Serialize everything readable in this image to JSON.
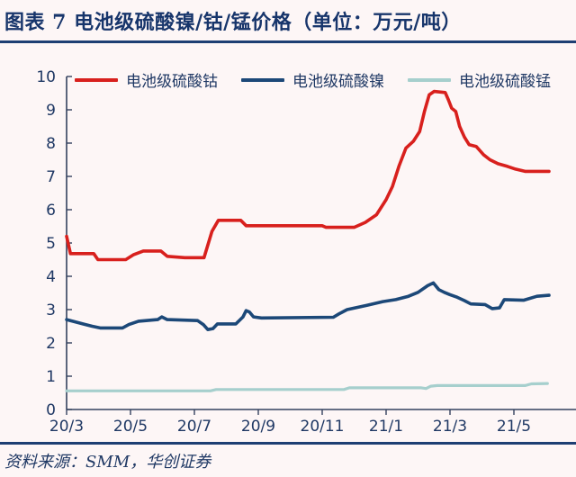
{
  "header": {
    "title": "图表 7 电池级硫酸镍/钴/锰价格（单位：万元/吨）"
  },
  "footer": {
    "source": "资料来源：SMM，华创证券"
  },
  "colors": {
    "cobalt": "#d8201d",
    "nickel": "#1c4878",
    "manganese": "#a6cfcd",
    "text": "#1f3864",
    "axis": "#33415e",
    "rule": "#1e3f73",
    "background": "#fdf6f6"
  },
  "chart_data": {
    "type": "line",
    "title": "电池级硫酸镍/钴/锰价格",
    "unit": "万元/吨",
    "legend_position": "top",
    "grid": false,
    "ylim": [
      0,
      10
    ],
    "y_ticks": [
      0,
      1,
      2,
      3,
      4,
      5,
      6,
      7,
      8,
      9,
      10
    ],
    "x_tick_labels": [
      "20/3",
      "20/5",
      "20/7",
      "20/9",
      "20/11",
      "21/1",
      "21/3",
      "21/5"
    ],
    "x_tick_months": [
      0,
      2,
      4,
      6,
      8,
      10,
      12,
      14
    ],
    "x_axis_end_month": 16,
    "x_note": "points are [months after 2020-03, price in 万元/吨]",
    "series": [
      {
        "name": "电池级硫酸钴",
        "color_key": "cobalt",
        "width": 3.6,
        "points": [
          [
            0,
            5.2
          ],
          [
            0.12,
            4.68
          ],
          [
            0.85,
            4.68
          ],
          [
            0.98,
            4.5
          ],
          [
            1.85,
            4.5
          ],
          [
            2.1,
            4.65
          ],
          [
            2.4,
            4.76
          ],
          [
            2.95,
            4.76
          ],
          [
            3.15,
            4.6
          ],
          [
            3.7,
            4.56
          ],
          [
            4.3,
            4.56
          ],
          [
            4.55,
            5.35
          ],
          [
            4.75,
            5.68
          ],
          [
            5.45,
            5.68
          ],
          [
            5.62,
            5.52
          ],
          [
            8.0,
            5.52
          ],
          [
            8.12,
            5.47
          ],
          [
            9.0,
            5.47
          ],
          [
            9.35,
            5.62
          ],
          [
            9.7,
            5.85
          ],
          [
            10.0,
            6.3
          ],
          [
            10.2,
            6.7
          ],
          [
            10.4,
            7.3
          ],
          [
            10.62,
            7.85
          ],
          [
            10.85,
            8.05
          ],
          [
            11.05,
            8.35
          ],
          [
            11.2,
            8.95
          ],
          [
            11.35,
            9.45
          ],
          [
            11.5,
            9.55
          ],
          [
            11.85,
            9.52
          ],
          [
            11.95,
            9.3
          ],
          [
            12.05,
            9.05
          ],
          [
            12.18,
            8.95
          ],
          [
            12.3,
            8.5
          ],
          [
            12.45,
            8.18
          ],
          [
            12.6,
            7.95
          ],
          [
            12.82,
            7.9
          ],
          [
            13.05,
            7.65
          ],
          [
            13.25,
            7.5
          ],
          [
            13.5,
            7.38
          ],
          [
            13.8,
            7.3
          ],
          [
            14.05,
            7.22
          ],
          [
            14.35,
            7.15
          ],
          [
            15.1,
            7.15
          ]
        ]
      },
      {
        "name": "电池级硫酸镍",
        "color_key": "nickel",
        "width": 3.6,
        "points": [
          [
            0,
            2.7
          ],
          [
            0.55,
            2.56
          ],
          [
            0.8,
            2.5
          ],
          [
            1.05,
            2.45
          ],
          [
            1.75,
            2.45
          ],
          [
            1.95,
            2.55
          ],
          [
            2.25,
            2.65
          ],
          [
            2.85,
            2.7
          ],
          [
            2.98,
            2.78
          ],
          [
            3.15,
            2.7
          ],
          [
            4.1,
            2.67
          ],
          [
            4.28,
            2.55
          ],
          [
            4.42,
            2.4
          ],
          [
            4.58,
            2.43
          ],
          [
            4.72,
            2.57
          ],
          [
            5.3,
            2.57
          ],
          [
            5.52,
            2.78
          ],
          [
            5.62,
            2.97
          ],
          [
            5.72,
            2.93
          ],
          [
            5.85,
            2.78
          ],
          [
            6.1,
            2.75
          ],
          [
            8.35,
            2.77
          ],
          [
            8.52,
            2.87
          ],
          [
            8.78,
            3.0
          ],
          [
            9.4,
            3.13
          ],
          [
            9.9,
            3.24
          ],
          [
            10.3,
            3.3
          ],
          [
            10.7,
            3.4
          ],
          [
            11.0,
            3.52
          ],
          [
            11.3,
            3.72
          ],
          [
            11.48,
            3.8
          ],
          [
            11.65,
            3.6
          ],
          [
            11.82,
            3.52
          ],
          [
            12.0,
            3.45
          ],
          [
            12.2,
            3.38
          ],
          [
            12.45,
            3.27
          ],
          [
            12.65,
            3.17
          ],
          [
            13.1,
            3.15
          ],
          [
            13.32,
            3.03
          ],
          [
            13.55,
            3.05
          ],
          [
            13.7,
            3.3
          ],
          [
            14.3,
            3.28
          ],
          [
            14.72,
            3.4
          ],
          [
            15.1,
            3.43
          ]
        ]
      },
      {
        "name": "电池级硫酸锰",
        "color_key": "manganese",
        "width": 3.2,
        "points": [
          [
            0,
            0.56
          ],
          [
            4.5,
            0.56
          ],
          [
            4.68,
            0.6
          ],
          [
            8.68,
            0.6
          ],
          [
            8.85,
            0.65
          ],
          [
            11.1,
            0.65
          ],
          [
            11.25,
            0.63
          ],
          [
            11.4,
            0.7
          ],
          [
            11.6,
            0.72
          ],
          [
            14.35,
            0.72
          ],
          [
            14.55,
            0.77
          ],
          [
            15.05,
            0.78
          ]
        ]
      }
    ]
  }
}
